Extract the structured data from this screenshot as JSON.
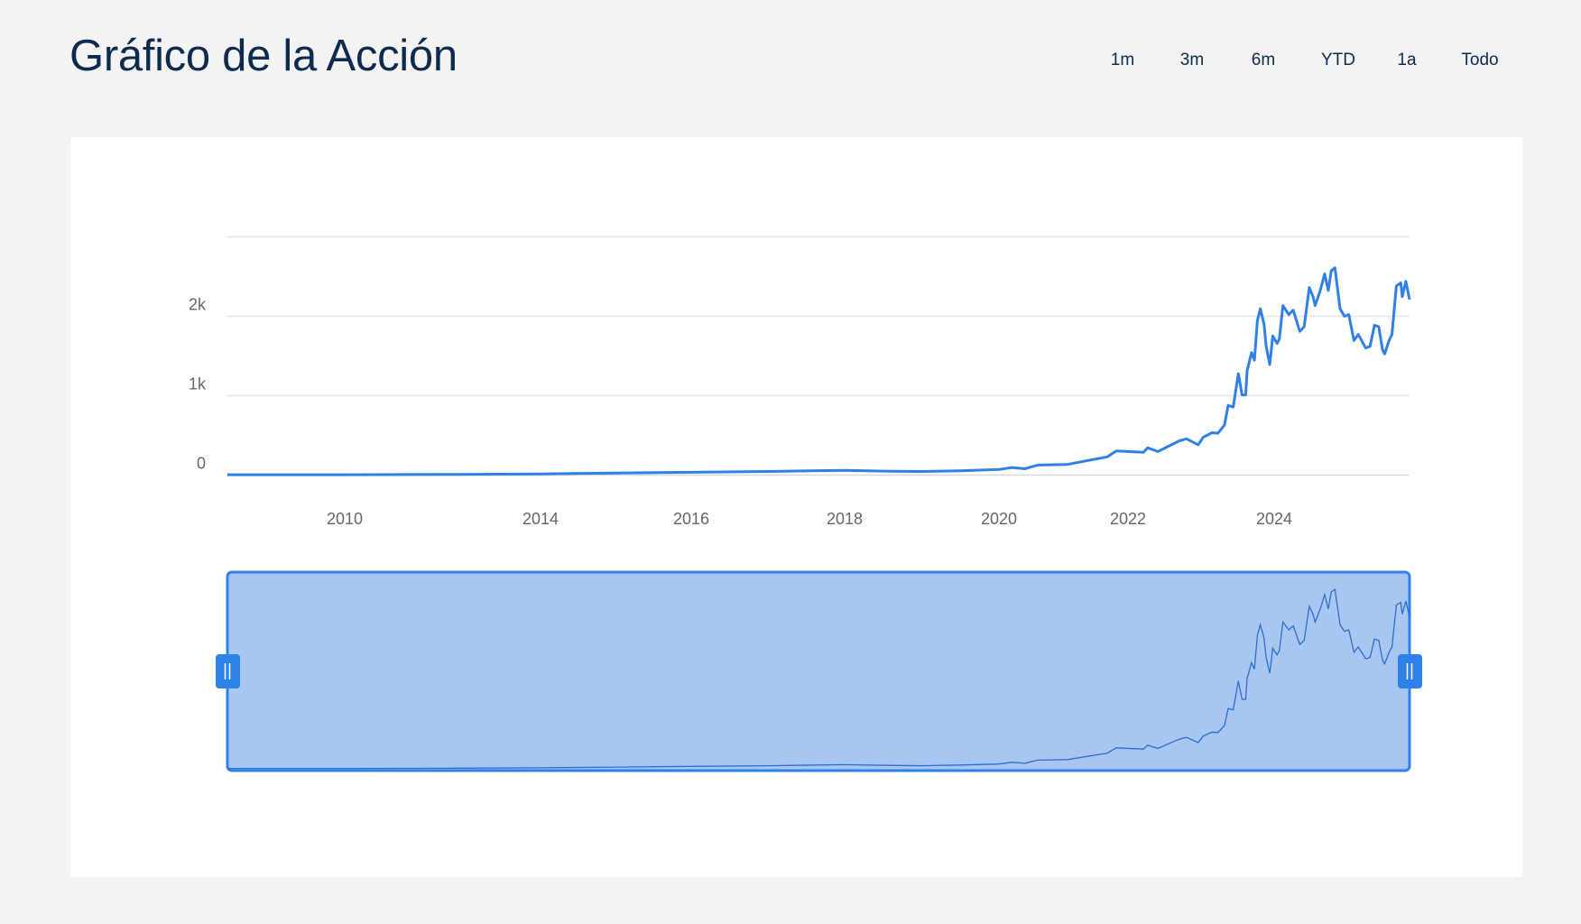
{
  "header": {
    "title": "Gráfico de la Acción"
  },
  "range_buttons": [
    {
      "label": "1m"
    },
    {
      "label": "3m"
    },
    {
      "label": "6m"
    },
    {
      "label": "YTD"
    },
    {
      "label": "1a"
    },
    {
      "label": "Todo"
    }
  ],
  "colors": {
    "line": "#2f80e7",
    "navigator_fill": "#a7c7f2",
    "navigator_border": "#2f80e7",
    "navigator_line": "#2f6dcc",
    "title": "#0d2b4e",
    "background": "#f3f3f3"
  },
  "chart_data": {
    "type": "line",
    "title": "",
    "xlabel": "",
    "ylabel": "",
    "ylim": [
      0,
      3000
    ],
    "xlim": [
      2007.6,
      2025.85
    ],
    "grid": true,
    "y_ticks": [
      {
        "value": 0,
        "label": "0"
      },
      {
        "value": 1000,
        "label": "1k"
      },
      {
        "value": 2000,
        "label": "2k"
      },
      {
        "value": 3000,
        "label": ""
      }
    ],
    "x_ticks": [
      {
        "value": 2010,
        "label": "2010"
      },
      {
        "value": 2014,
        "label": "2014"
      },
      {
        "value": 2016,
        "label": "2016"
      },
      {
        "value": 2018,
        "label": "2018"
      },
      {
        "value": 2020,
        "label": "2020"
      },
      {
        "value": 2022,
        "label": "2022"
      },
      {
        "value": 2024,
        "label": "2024"
      }
    ],
    "series": [
      {
        "points": [
          [
            2007.6,
            5
          ],
          [
            2010,
            5
          ],
          [
            2012,
            8
          ],
          [
            2014,
            15
          ],
          [
            2015,
            25
          ],
          [
            2016,
            35
          ],
          [
            2017,
            45
          ],
          [
            2018,
            60
          ],
          [
            2018.5,
            50
          ],
          [
            2019,
            45
          ],
          [
            2019.5,
            55
          ],
          [
            2020,
            70
          ],
          [
            2020.2,
            95
          ],
          [
            2020.4,
            80
          ],
          [
            2020.6,
            126
          ],
          [
            2021.06,
            134
          ],
          [
            2021.68,
            229
          ],
          [
            2021.82,
            305
          ],
          [
            2022.21,
            286
          ],
          [
            2022.27,
            343
          ],
          [
            2022.41,
            297
          ],
          [
            2022.7,
            431
          ],
          [
            2022.8,
            457
          ],
          [
            2022.96,
            382
          ],
          [
            2023.03,
            476
          ],
          [
            2023.15,
            534
          ],
          [
            2023.23,
            526
          ],
          [
            2023.32,
            629
          ],
          [
            2023.37,
            877
          ],
          [
            2023.44,
            857
          ],
          [
            2023.51,
            1277
          ],
          [
            2023.56,
            1010
          ],
          [
            2023.61,
            1010
          ],
          [
            2023.63,
            1314
          ],
          [
            2023.69,
            1543
          ],
          [
            2023.73,
            1448
          ],
          [
            2023.77,
            1943
          ],
          [
            2023.81,
            2096
          ],
          [
            2023.86,
            1905
          ],
          [
            2023.89,
            1620
          ],
          [
            2023.94,
            1391
          ],
          [
            2023.98,
            1753
          ],
          [
            2024.04,
            1657
          ],
          [
            2024.07,
            1715
          ],
          [
            2024.12,
            2134
          ],
          [
            2024.2,
            2020
          ],
          [
            2024.26,
            2077
          ],
          [
            2024.35,
            1810
          ],
          [
            2024.41,
            1868
          ],
          [
            2024.48,
            2363
          ],
          [
            2024.53,
            2248
          ],
          [
            2024.56,
            2134
          ],
          [
            2024.63,
            2325
          ],
          [
            2024.69,
            2534
          ],
          [
            2024.74,
            2325
          ],
          [
            2024.78,
            2572
          ],
          [
            2024.83,
            2610
          ],
          [
            2024.9,
            2096
          ],
          [
            2024.96,
            2000
          ],
          [
            2025.02,
            2020
          ],
          [
            2025.09,
            1696
          ],
          [
            2025.15,
            1772
          ],
          [
            2025.25,
            1600
          ],
          [
            2025.31,
            1620
          ],
          [
            2025.37,
            1886
          ],
          [
            2025.43,
            1868
          ],
          [
            2025.48,
            1582
          ],
          [
            2025.51,
            1525
          ],
          [
            2025.57,
            1696
          ],
          [
            2025.61,
            1772
          ],
          [
            2025.67,
            2382
          ],
          [
            2025.73,
            2420
          ],
          [
            2025.75,
            2248
          ],
          [
            2025.8,
            2439
          ],
          [
            2025.85,
            2210
          ]
        ]
      }
    ]
  }
}
